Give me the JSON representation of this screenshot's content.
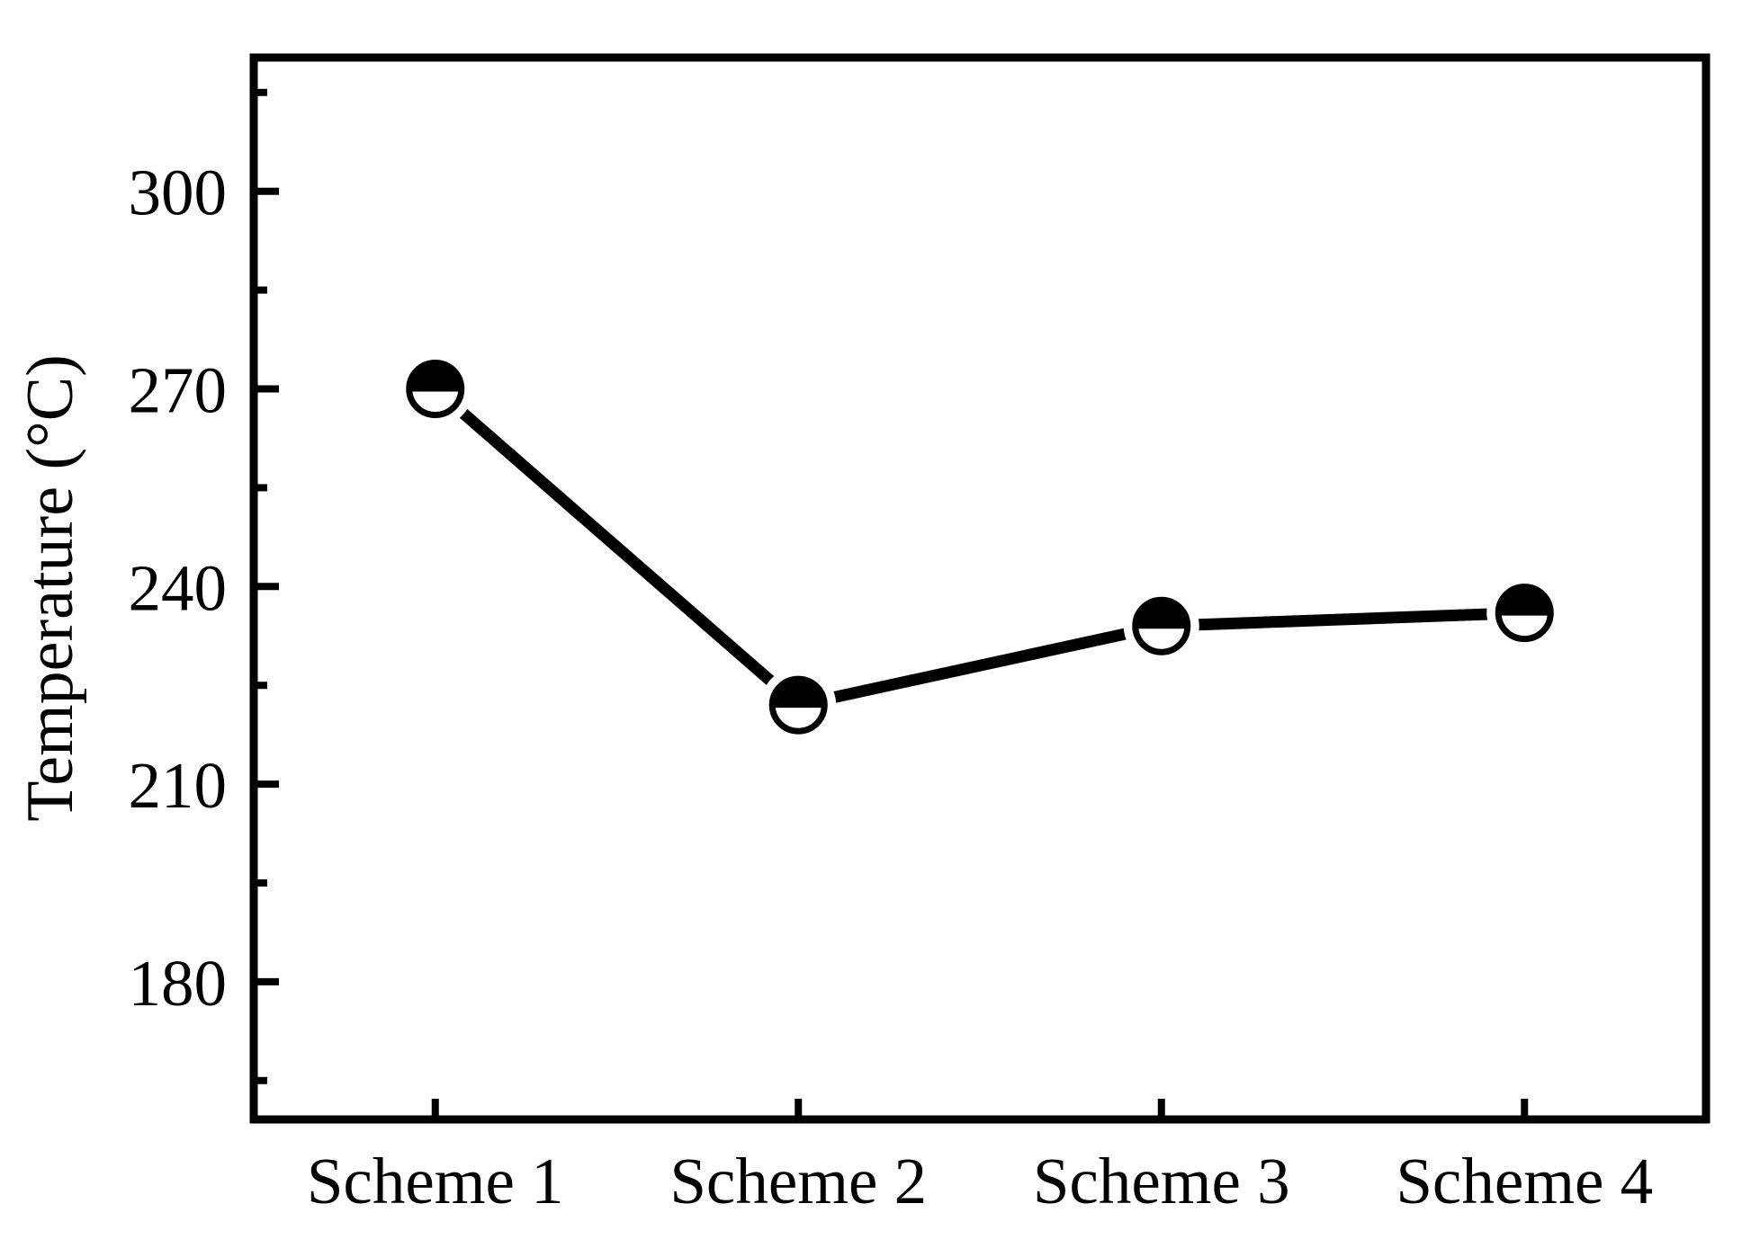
{
  "chart_data": {
    "type": "line",
    "title": "",
    "categories": [
      "Scheme 1",
      "Scheme 2",
      "Scheme 3",
      "Scheme 4"
    ],
    "series": [
      {
        "name": "Temperature",
        "values": [
          270,
          222,
          234,
          236
        ]
      }
    ],
    "xlabel": "",
    "ylabel": "Temperature (°C)",
    "yticks": [
      300,
      270,
      240,
      210,
      180
    ],
    "ytick_labels": [
      "300",
      "270",
      "240",
      "210",
      "180"
    ],
    "yminor_ticks": [
      315,
      285,
      255,
      225,
      195,
      165
    ],
    "ylim": [
      159.1,
      320.3
    ],
    "grid": false,
    "legend": false,
    "marker": "half-filled-circle-top-black",
    "line_color": "#000000",
    "marker_fill_top": "#000000",
    "marker_fill_bottom": "#ffffff",
    "axis_color": "#000000",
    "background": "#ffffff"
  }
}
